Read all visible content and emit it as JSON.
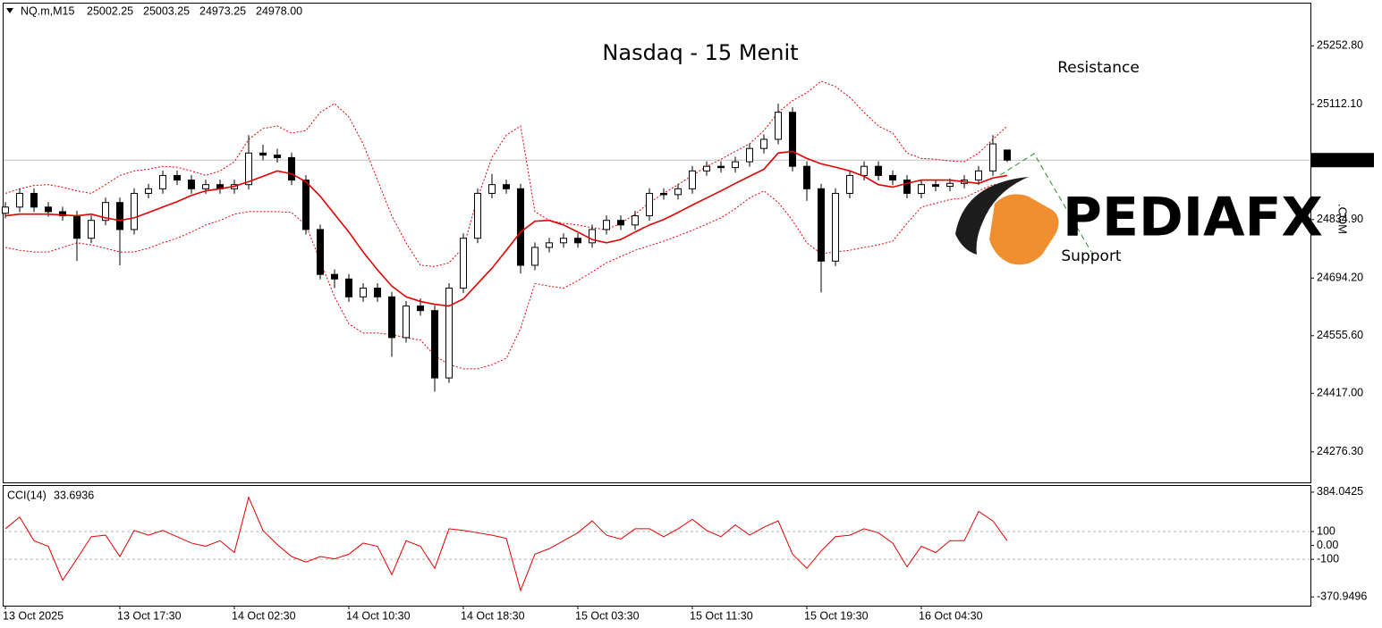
{
  "chart_data": [
    {
      "type": "candlestick",
      "title": "Nasdaq - 15 Menit",
      "symbol": "NQ.m,M15",
      "ohlc_labels": [
        "25002.25",
        "25003.25",
        "24973.25",
        "24978.00"
      ],
      "categories": [
        "13 Oct 2025",
        null,
        null,
        null,
        null,
        null,
        null,
        null,
        "13 Oct 17:30",
        null,
        null,
        null,
        null,
        null,
        null,
        null,
        "14 Oct 02:30",
        null,
        null,
        null,
        null,
        null,
        null,
        null,
        "14 Oct 10:30",
        null,
        null,
        null,
        null,
        null,
        null,
        null,
        "14 Oct 18:30",
        null,
        null,
        null,
        null,
        null,
        null,
        null,
        "15 Oct 03:30",
        null,
        null,
        null,
        null,
        null,
        null,
        null,
        "15 Oct 11:30",
        null,
        null,
        null,
        null,
        null,
        null,
        null,
        "15 Oct 19:30",
        null,
        null,
        null,
        null,
        null,
        null,
        null,
        "16 Oct 04:30",
        null,
        null,
        null,
        null,
        null,
        null
      ],
      "open": [
        24850,
        24865,
        24898,
        24865,
        24854,
        24844,
        24790,
        24833,
        24876,
        24811,
        24898,
        24909,
        24941,
        24930,
        24909,
        24919,
        24909,
        24919,
        24995,
        24990,
        24984,
        24930,
        24811,
        24703,
        24692,
        24649,
        24670,
        24649,
        24551,
        24627,
        24616,
        24454,
        24670,
        24790,
        24898,
        24919,
        24909,
        24725,
        24768,
        24779,
        24790,
        24779,
        24811,
        24833,
        24822,
        24844,
        24898,
        24895,
        24909,
        24952,
        24963,
        24960,
        24974,
        25006,
        25028,
        25093,
        24963,
        24909,
        24735,
        24898,
        24941,
        24963,
        24941,
        24930,
        24898,
        24919,
        24915,
        24922,
        24930,
        24952,
        25002.25
      ],
      "high": [
        24877,
        24910,
        24910,
        24877,
        24866,
        24856,
        24845,
        24888,
        24888,
        24910,
        24921,
        24953,
        24953,
        24942,
        24931,
        24931,
        24931,
        25038,
        25015,
        25005,
        24996,
        24942,
        24823,
        24715,
        24704,
        24682,
        24682,
        24661,
        24639,
        24645,
        24628,
        24682,
        24802,
        24910,
        24945,
        24931,
        24921,
        24780,
        24791,
        24802,
        24802,
        24823,
        24845,
        24845,
        24856,
        24910,
        24910,
        24921,
        24964,
        24975,
        24975,
        24986,
        25018,
        25040,
        25114,
        25105,
        24975,
        24921,
        24910,
        24953,
        24975,
        24975,
        24953,
        24942,
        24931,
        24931,
        24934,
        24942,
        24964,
        25038,
        25003.25
      ],
      "low": [
        24838,
        24853,
        24853,
        24842,
        24832,
        24735,
        24778,
        24821,
        24725,
        24799,
        24886,
        24897,
        24918,
        24897,
        24897,
        24897,
        24897,
        24907,
        24978,
        24972,
        24918,
        24799,
        24691,
        24670,
        24637,
        24637,
        24637,
        24505,
        24539,
        24604,
        24421,
        24442,
        24658,
        24778,
        24886,
        24897,
        24705,
        24713,
        24756,
        24767,
        24767,
        24767,
        24799,
        24810,
        24810,
        24832,
        24883,
        24883,
        24897,
        24940,
        24948,
        24948,
        24962,
        24994,
        25016,
        24951,
        24880,
        24660,
        24723,
        24886,
        24929,
        24929,
        24918,
        24886,
        24886,
        24903,
        24903,
        24910,
        24918,
        24940,
        24973.25
      ],
      "close": [
        24865,
        24898,
        24865,
        24854,
        24844,
        24790,
        24833,
        24876,
        24811,
        24898,
        24909,
        24941,
        24930,
        24909,
        24919,
        24909,
        24919,
        24995,
        24990,
        24984,
        24930,
        24811,
        24703,
        24692,
        24649,
        24670,
        24649,
        24551,
        24627,
        24616,
        24454,
        24670,
        24790,
        24898,
        24919,
        24909,
        24725,
        24768,
        24779,
        24790,
        24779,
        24811,
        24833,
        24822,
        24844,
        24898,
        24895,
        24909,
        24952,
        24963,
        24960,
        24974,
        25006,
        25028,
        25093,
        24963,
        24909,
        24735,
        24898,
        24941,
        24963,
        24941,
        24930,
        24898,
        24919,
        24915,
        24922,
        24930,
        24952,
        25017,
        24978
      ],
      "color": "#000000",
      "moving_average": {
        "color": "#e00000",
        "values": [
          24844,
          24848,
          24848,
          24848,
          24846,
          24844,
          24848,
          24839,
          24833,
          24839,
          24852,
          24865,
          24878,
          24893,
          24904,
          24909,
          24915,
          24926,
          24939,
          24952,
          24945,
          24926,
          24891,
          24848,
          24805,
          24757,
          24714,
          24675,
          24649,
          24638,
          24631,
          24627,
          24644,
          24681,
          24718,
          24761,
          24805,
          24831,
          24833,
          24822,
          24805,
          24787,
          24779,
          24787,
          24805,
          24822,
          24835,
          24852,
          24870,
          24887,
          24904,
          24922,
          24939,
          24956,
          24995,
          24999,
          24982,
          24969,
          24961,
          24952,
          24939,
          24919,
          24913,
          24922,
          24930,
          24930,
          24930,
          24926,
          24922,
          24935,
          24941
        ]
      },
      "bands": {
        "color": "#e00000",
        "upper": [
          24898,
          24909,
          24917,
          24919,
          24913,
          24904,
          24898,
          24919,
          24941,
          24952,
          24956,
          24963,
          24961,
          24952,
          24941,
          24952,
          24974,
          25028,
          25054,
          25060,
          25043,
          25049,
          25093,
          25114,
          25082,
          25017,
          24930,
          24844,
          24779,
          24725,
          24722,
          24731,
          24768,
          24887,
          24984,
          25038,
          25060,
          24854,
          24833,
          24826,
          24822,
          24815,
          24811,
          24826,
          24848,
          24876,
          24898,
          24919,
          24941,
          24963,
          24980,
          24999,
          25017,
          25049,
          25093,
          25121,
          25140,
          25168,
          25155,
          25129,
          25093,
          25060,
          25043,
          24995,
          24982,
          24980,
          24976,
          24974,
          24995,
          25028,
          25060
        ],
        "lower": [
          24768,
          24761,
          24757,
          24757,
          24768,
          24779,
          24774,
          24766,
          24757,
          24757,
          24766,
          24779,
          24790,
          24805,
          24822,
          24833,
          24848,
          24854,
          24854,
          24854,
          24852,
          24822,
          24735,
          24649,
          24584,
          24562,
          24562,
          24558,
          24551,
          24545,
          24508,
          24486,
          24476,
          24476,
          24486,
          24501,
          24573,
          24681,
          24675,
          24670,
          24688,
          24709,
          24731,
          24746,
          24761,
          24772,
          24783,
          24796,
          24809,
          24824,
          24839,
          24861,
          24887,
          24904,
          24876,
          24833,
          24779,
          24753,
          24757,
          24761,
          24768,
          24774,
          24783,
          24826,
          24865,
          24874,
          24883,
          24887,
          24904,
          24919,
          24919
        ]
      },
      "current_price": {
        "value": 24978,
        "label": "24978.00"
      },
      "ylim": [
        24202.7,
        25356.7
      ],
      "yticks": [
        {
          "value": 25252.8,
          "label": "25252.80"
        },
        {
          "value": 25112.1,
          "label": "25112.10"
        },
        {
          "value": 24834.9,
          "label": "24834.90"
        },
        {
          "value": 24694.2,
          "label": "24694.20"
        },
        {
          "value": 24555.6,
          "label": "24555.60"
        },
        {
          "value": 24417,
          "label": "24417.00"
        },
        {
          "value": 24276.3,
          "label": "24276.30"
        }
      ],
      "annotations": [
        "Resistance",
        "Support"
      ],
      "watermark": {
        "text": "PEDIAFX",
        "suffix": ".COM"
      }
    },
    {
      "type": "line",
      "title": "CCI(14)",
      "color": "#e00000",
      "values": [
        120,
        205,
        34,
        -6,
        -250,
        -97,
        63,
        74,
        -80,
        108,
        74,
        108,
        63,
        17,
        -6,
        34,
        -51,
        347,
        108,
        6,
        -80,
        -120,
        -80,
        -97,
        -63,
        17,
        -6,
        -211,
        34,
        -6,
        -165,
        120,
        108,
        91,
        74,
        51,
        -325,
        -63,
        -23,
        34,
        91,
        177,
        74,
        46,
        120,
        120,
        63,
        120,
        188,
        108,
        63,
        148,
        74,
        131,
        177,
        -63,
        -165,
        -40,
        63,
        74,
        120,
        91,
        17,
        -154,
        -6,
        -51,
        34,
        34,
        245,
        177,
        33.6936
      ],
      "ylim": [
        -434,
        435
      ],
      "yticks": [
        384.0425,
        100,
        {
          "value": 0,
          "label": "0.00"
        },
        -100,
        -370.9496
      ],
      "levels": [
        100,
        -100
      ]
    }
  ]
}
